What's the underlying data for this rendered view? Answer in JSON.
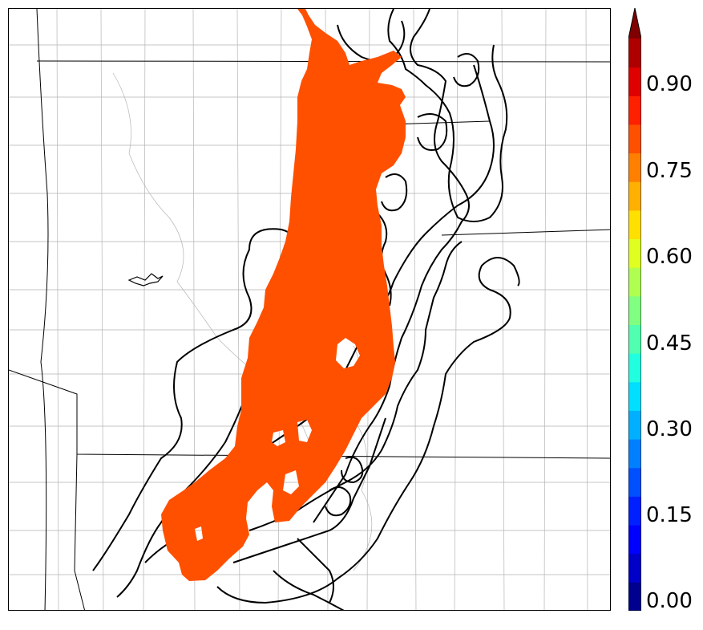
{
  "colorbar": {
    "ticks": [
      "0.00",
      "0.15",
      "0.30",
      "0.45",
      "0.60",
      "0.75",
      "0.90"
    ],
    "min": 0.0,
    "max": 1.0,
    "extend": "max",
    "bin_colors": [
      "#00008f",
      "#0000c8",
      "#0000ff",
      "#0020ff",
      "#0050ff",
      "#0080ff",
      "#00b0ff",
      "#00dfff",
      "#20ffdf",
      "#50ffaf",
      "#80ff80",
      "#b0ff50",
      "#e0ff20",
      "#ffe000",
      "#ffb000",
      "#ff8000",
      "#ff5000",
      "#ff2000",
      "#df0000",
      "#af0000"
    ],
    "extend_color": "#800000"
  },
  "map": {
    "filled_probability_value": 0.85,
    "fill_color": "#ff5000",
    "contour_color": "#000000",
    "boundary_color": "#000000",
    "county_color": "#b4b4b4"
  }
}
